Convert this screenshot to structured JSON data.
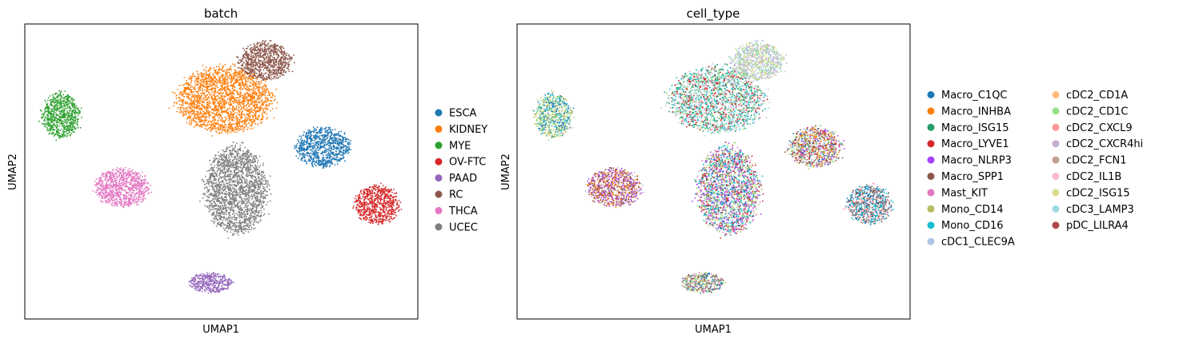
{
  "chart_data": [
    {
      "type": "scatter",
      "title": "batch",
      "xlabel": "UMAP1",
      "ylabel": "UMAP2",
      "grid": false,
      "ticks": false,
      "legend_position": "right",
      "xlim": [
        0,
        100
      ],
      "ylim": [
        0,
        100
      ],
      "legend": [
        {
          "name": "ESCA",
          "color": "#1f77b4"
        },
        {
          "name": "KIDNEY",
          "color": "#ff7f0e"
        },
        {
          "name": "MYE",
          "color": "#2ca02c"
        },
        {
          "name": "OV-FTC",
          "color": "#d62728"
        },
        {
          "name": "PAAD",
          "color": "#9467bd"
        },
        {
          "name": "RC",
          "color": "#8c564b"
        },
        {
          "name": "THCA",
          "color": "#e377c2"
        },
        {
          "name": "UCEC",
          "color": "#7f7f7f"
        }
      ],
      "clusters": [
        {
          "name": "ESCA",
          "cx": 75.9,
          "cy": 58.3,
          "rx": 6.7,
          "ry": 6.5
        },
        {
          "name": "KIDNEY",
          "cx": 50.8,
          "cy": 74.3,
          "rx": 12.2,
          "ry": 10.8
        },
        {
          "name": "MYE",
          "cx": 9.2,
          "cy": 69.0,
          "rx": 4.8,
          "ry": 7.4
        },
        {
          "name": "OV-FTC",
          "cx": 89.6,
          "cy": 38.8,
          "rx": 5.7,
          "ry": 6.4
        },
        {
          "name": "PAAD",
          "cx": 47.3,
          "cy": 12.3,
          "rx": 5.5,
          "ry": 3.3
        },
        {
          "name": "RC",
          "cx": 61.2,
          "cy": 87.4,
          "rx": 6.7,
          "ry": 6.2
        },
        {
          "name": "THCA",
          "cx": 24.7,
          "cy": 44.6,
          "rx": 6.9,
          "ry": 6.4
        },
        {
          "name": "UCEC",
          "cx": 53.8,
          "cy": 43.7,
          "rx": 8.0,
          "ry": 14.4
        }
      ]
    },
    {
      "type": "scatter",
      "title": "cell_type",
      "xlabel": "UMAP1",
      "ylabel": "UMAP2",
      "grid": false,
      "ticks": false,
      "legend_position": "right",
      "xlim": [
        0,
        100
      ],
      "ylim": [
        0,
        100
      ],
      "legend": [
        {
          "name": "Macro_C1QC",
          "color": "#1f77b4"
        },
        {
          "name": "Macro_INHBA",
          "color": "#ff7f0e"
        },
        {
          "name": "Macro_ISG15",
          "color": "#279e68"
        },
        {
          "name": "Macro_LYVE1",
          "color": "#d62728"
        },
        {
          "name": "Macro_NLRP3",
          "color": "#aa40fc"
        },
        {
          "name": "Macro_SPP1",
          "color": "#8c564b"
        },
        {
          "name": "Mast_KIT",
          "color": "#e377c2"
        },
        {
          "name": "Mono_CD14",
          "color": "#b5bd61"
        },
        {
          "name": "Mono_CD16",
          "color": "#17becf"
        },
        {
          "name": "cDC1_CLEC9A",
          "color": "#aec7e8"
        },
        {
          "name": "cDC2_CD1A",
          "color": "#ffbb78"
        },
        {
          "name": "cDC2_CD1C",
          "color": "#98df8a"
        },
        {
          "name": "cDC2_CXCL9",
          "color": "#ff9896"
        },
        {
          "name": "cDC2_CXCR4hi",
          "color": "#c5b0d5"
        },
        {
          "name": "cDC2_FCN1",
          "color": "#c49c94"
        },
        {
          "name": "cDC2_IL1B",
          "color": "#f7b6d2"
        },
        {
          "name": "cDC2_ISG15",
          "color": "#dbdb8d"
        },
        {
          "name": "cDC3_LAMP3",
          "color": "#9edae5"
        },
        {
          "name": "pDC_LILRA4",
          "color": "#ad494a"
        }
      ],
      "clusters": [
        {
          "name": "Macro_C1QC",
          "cx": 75.9,
          "cy": 58.3,
          "rx": 6.7,
          "ry": 6.5
        },
        {
          "name": "Macro_INHBA",
          "cx": 50.8,
          "cy": 74.3,
          "rx": 12.2,
          "ry": 10.8
        },
        {
          "name": "Macro_ISG15",
          "cx": 9.2,
          "cy": 69.0,
          "rx": 4.8,
          "ry": 7.4
        },
        {
          "name": "Macro_LYVE1",
          "cx": 89.6,
          "cy": 38.8,
          "rx": 5.7,
          "ry": 6.4
        },
        {
          "name": "Macro_NLRP3",
          "cx": 47.3,
          "cy": 12.3,
          "rx": 5.5,
          "ry": 3.3
        },
        {
          "name": "Macro_SPP1",
          "cx": 61.2,
          "cy": 87.4,
          "rx": 6.7,
          "ry": 6.2
        },
        {
          "name": "Mast_KIT",
          "cx": 24.7,
          "cy": 44.6,
          "rx": 6.9,
          "ry": 6.4
        },
        {
          "name": "Mono_CD14",
          "cx": 53.8,
          "cy": 43.7,
          "rx": 8.0,
          "ry": 14.4
        }
      ],
      "cluster_palettes": [
        [
          "#1f77b4",
          "#c5b0d5",
          "#d62728",
          "#ff7f0e",
          "#aa40fc",
          "#b5bd61",
          "#8c564b",
          "#98df8a"
        ],
        [
          "#17becf",
          "#98df8a",
          "#d62728",
          "#9edae5",
          "#c5b0d5",
          "#279e68"
        ],
        [
          "#b5bd61",
          "#17becf",
          "#1f77b4",
          "#98df8a",
          "#dbdb8d"
        ],
        [
          "#1f77b4",
          "#8c564b",
          "#17becf",
          "#ff9896"
        ],
        [
          "#1f77b4",
          "#b5bd61",
          "#e377c2",
          "#98df8a",
          "#8c564b"
        ],
        [
          "#dbdb8d",
          "#98df8a",
          "#c5b0d5",
          "#aec7e8"
        ],
        [
          "#aa40fc",
          "#ff7f0e",
          "#8c564b",
          "#c5b0d5",
          "#ad494a"
        ],
        [
          "#e377c2",
          "#1f77b4",
          "#b5bd61",
          "#17becf",
          "#d62728",
          "#aa40fc",
          "#98df8a"
        ]
      ]
    }
  ]
}
